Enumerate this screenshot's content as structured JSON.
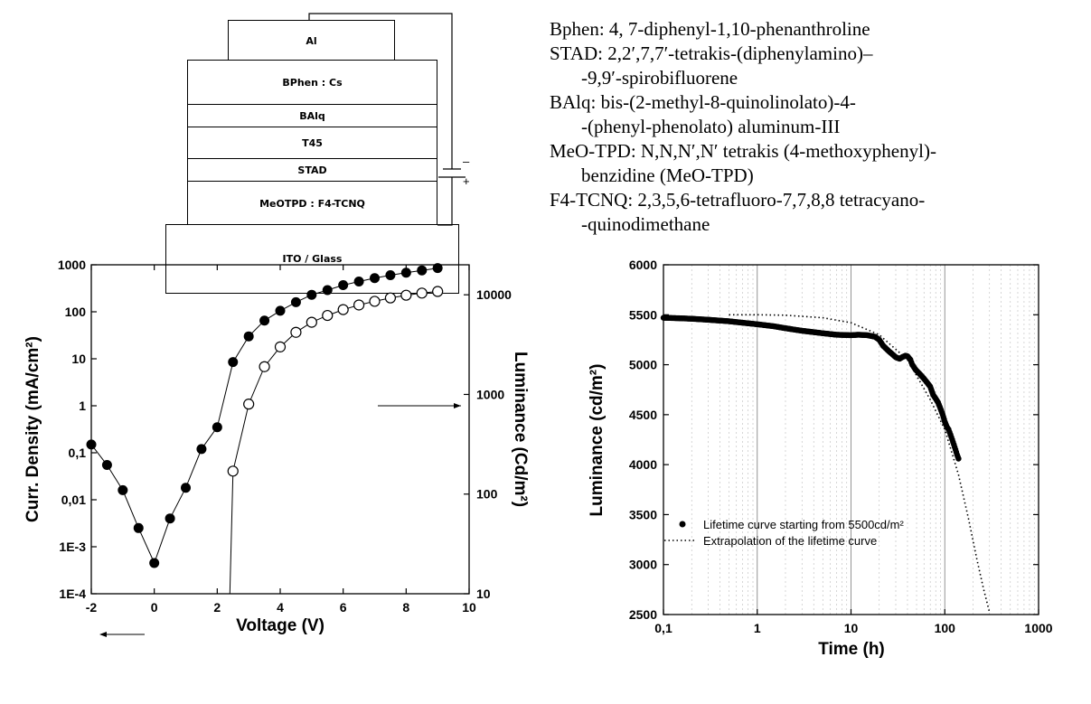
{
  "device": {
    "layers": [
      {
        "label": "Al"
      },
      {
        "label": "BPhen : Cs"
      },
      {
        "label": "BAlq"
      },
      {
        "label": "T45"
      },
      {
        "label": "STAD"
      },
      {
        "label": "MeOTPD : F4-TCNQ"
      },
      {
        "label": "ITO / Glass"
      }
    ],
    "battery_minus": "–",
    "battery_plus": "+"
  },
  "legend": {
    "lines": [
      "Bphen:   4, 7-diphenyl-1,10-phenanthroline",
      "STAD:   2,2′,7,7′-tetrakis-(diphenylamino)–",
      "-9,9′-spirobifluorene",
      "BAlq:   bis-(2-methyl-8-quinolinolato)-4-",
      "-(phenyl-phenolato) aluminum-III",
      "MeO-TPD: N,N,N′,N′ tetrakis (4-methoxyphenyl)-",
      "benzidine (MeO-TPD)",
      "F4-TCNQ:  2,3,5,6-tetrafluoro-7,7,8,8 tetracyano-",
      "-quinodimethane"
    ]
  },
  "chart_data": [
    {
      "type": "scatter",
      "xlabel": "Voltage (V)",
      "ylabel": "Curr. Density (mA/cm²)",
      "y2label": "Luminance (Cd/m²)",
      "xlim": [
        -2,
        10
      ],
      "ylim": [
        0.0001,
        1000
      ],
      "y2lim": [
        10,
        20000
      ],
      "yscale": "log",
      "y2scale": "log",
      "x_ticks": [
        "-2",
        "0",
        "2",
        "4",
        "6",
        "8",
        "10"
      ],
      "y_ticks": [
        "1E-4",
        "1E-3",
        "0,01",
        "0,1",
        "1",
        "10",
        "100",
        "1000"
      ],
      "y2_ticks": [
        "10",
        "100",
        "1000",
        "10000"
      ],
      "series": [
        {
          "axis": "left",
          "marker": "filled-circle",
          "color": "#000000",
          "x": [
            -2,
            -1.5,
            -1,
            -0.5,
            0,
            0.5,
            1,
            1.5,
            2,
            2.5,
            3,
            3.5,
            4,
            4.5,
            5,
            5.5,
            6,
            6.5,
            7,
            7.5,
            8,
            8.5,
            9
          ],
          "y": [
            0.15,
            0.055,
            0.016,
            0.0025,
            0.00045,
            0.004,
            0.018,
            0.12,
            0.35,
            8.5,
            30,
            65,
            105,
            160,
            230,
            290,
            370,
            440,
            520,
            600,
            680,
            760,
            850
          ]
        },
        {
          "axis": "right",
          "marker": "open-circle",
          "color": "#000000",
          "x": [
            2.4,
            2.5,
            3,
            3.5,
            4,
            4.5,
            5,
            5.5,
            6,
            6.5,
            7,
            7.5,
            8,
            8.5,
            9
          ],
          "y": [
            10,
            170,
            800,
            1900,
            3000,
            4200,
            5300,
            6200,
            7100,
            7900,
            8600,
            9300,
            9900,
            10400,
            10800
          ]
        }
      ]
    },
    {
      "type": "scatter",
      "xlabel": "Time (h)",
      "ylabel": "Luminance (cd/m²)",
      "xlim": [
        0.1,
        1000
      ],
      "ylim": [
        2500,
        6000
      ],
      "xscale": "log",
      "grid": true,
      "legend_position": "lower-left",
      "x_ticks": [
        "0,1",
        "1",
        "10",
        "100",
        "1000"
      ],
      "y_ticks": [
        "2500",
        "3000",
        "3500",
        "4000",
        "4500",
        "5000",
        "5500",
        "6000"
      ],
      "series": [
        {
          "name": "Lifetime curve starting from 5500cd/m²",
          "marker": "filled-circle",
          "color": "#000000",
          "x": [
            0.1,
            0.15,
            0.2,
            0.3,
            0.5,
            0.7,
            1,
            1.5,
            2,
            3,
            5,
            7,
            10,
            12,
            15,
            18,
            20,
            22,
            25,
            28,
            30,
            33,
            35,
            38,
            40,
            43,
            45,
            48,
            50,
            55,
            60,
            65,
            70,
            75,
            80,
            85,
            90,
            95,
            100,
            105,
            110,
            115,
            120,
            125,
            130,
            135,
            140
          ],
          "y": [
            5470,
            5465,
            5460,
            5450,
            5435,
            5420,
            5405,
            5385,
            5365,
            5340,
            5315,
            5300,
            5295,
            5300,
            5295,
            5280,
            5250,
            5190,
            5140,
            5100,
            5075,
            5060,
            5075,
            5090,
            5085,
            5050,
            5000,
            4960,
            4940,
            4900,
            4860,
            4820,
            4780,
            4700,
            4660,
            4620,
            4560,
            4500,
            4430,
            4380,
            4350,
            4300,
            4250,
            4200,
            4150,
            4100,
            4060
          ]
        },
        {
          "name": "Extrapolation of the lifetime curve",
          "line": "dotted",
          "color": "#000000",
          "x": [
            0.5,
            1,
            2,
            5,
            10,
            20,
            40,
            70,
            100,
            140,
            180,
            220,
            260,
            300
          ],
          "y": [
            5500,
            5500,
            5495,
            5470,
            5420,
            5300,
            5050,
            4650,
            4350,
            3900,
            3450,
            3050,
            2750,
            2520
          ]
        }
      ]
    }
  ]
}
